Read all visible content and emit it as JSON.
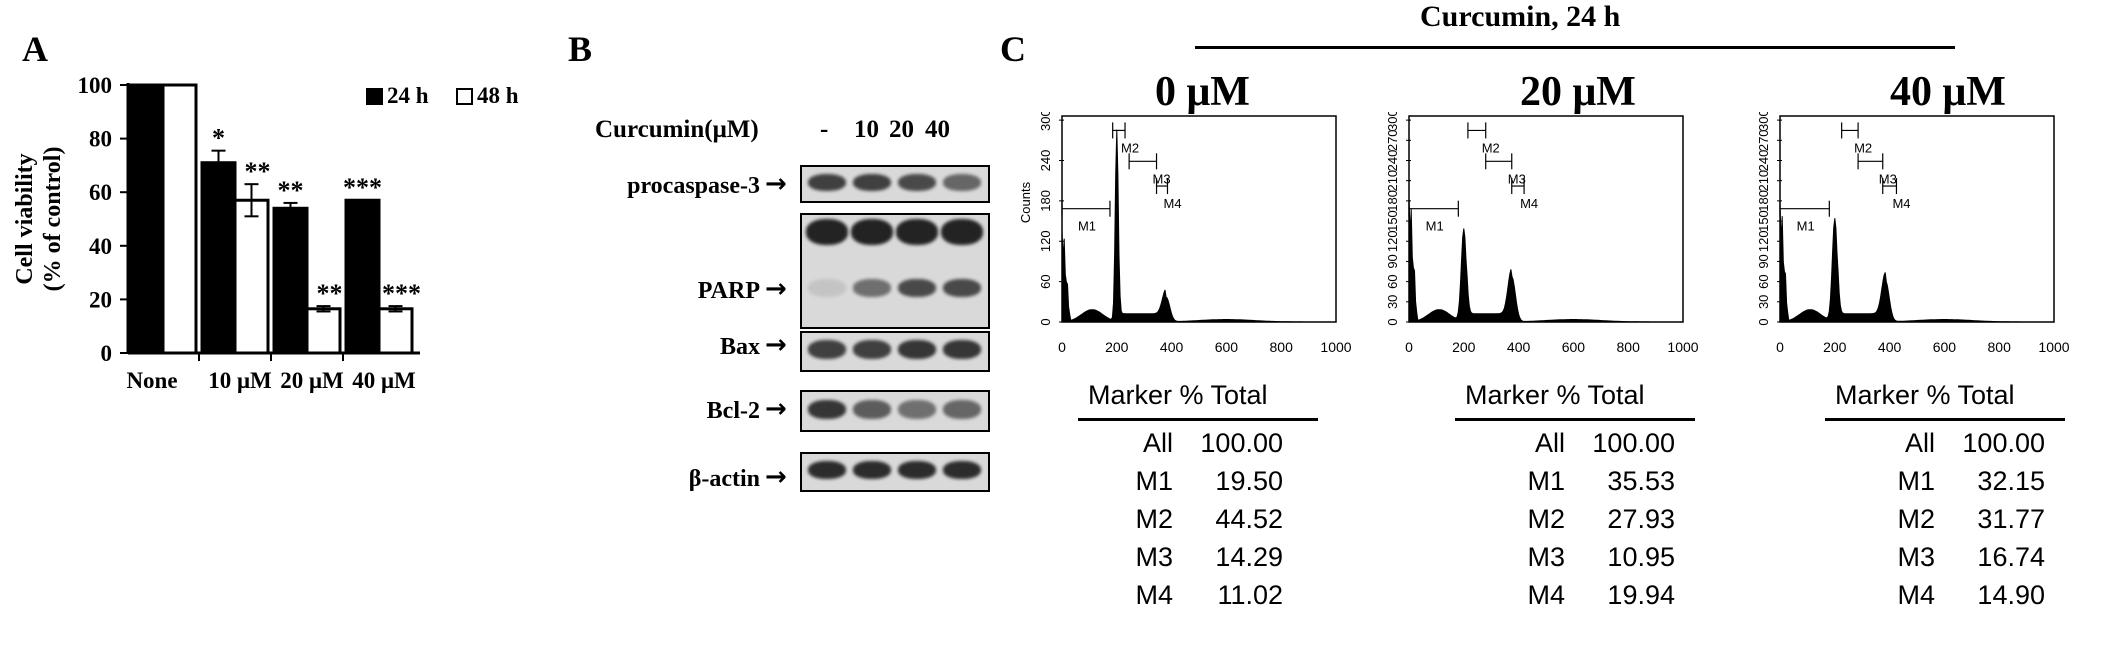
{
  "panels": {
    "A": {
      "letter": "A",
      "chart_data": {
        "type": "bar",
        "categories": [
          "None",
          "10 μM",
          "20 μM",
          "40 μM"
        ],
        "series": [
          {
            "name": "24 h",
            "values": [
              100,
              71,
              54,
              57
            ],
            "errors": [
              0,
              4.5,
              2,
              0
            ],
            "sig": [
              "",
              "*",
              "**",
              "***"
            ],
            "color": "#000000"
          },
          {
            "name": "48 h",
            "values": [
              100,
              57,
              16.5,
              16.5
            ],
            "errors": [
              0,
              6,
              1,
              1
            ],
            "sig": [
              "",
              "**",
              "**",
              "***"
            ],
            "color": "#ffffff"
          }
        ],
        "ylabel_line1": "Cell viability",
        "ylabel_line2": "(% of control)",
        "ylim": [
          0,
          100
        ],
        "yticks": [
          0,
          20,
          40,
          60,
          80,
          100
        ],
        "legend": "top-right"
      }
    },
    "B": {
      "letter": "B",
      "header_label": "Curcumin(μM)",
      "lanes": [
        "-",
        "10",
        "20",
        "40"
      ],
      "blots": [
        {
          "label": "procaspase-3",
          "intensity": [
            0.8,
            0.8,
            0.75,
            0.6
          ]
        },
        {
          "label": "PARP",
          "intensity": [
            0.1,
            0.55,
            0.75,
            0.75
          ]
        },
        {
          "label": "Bax",
          "intensity": [
            0.8,
            0.8,
            0.85,
            0.85
          ]
        },
        {
          "label": "Bcl-2",
          "intensity": [
            0.85,
            0.65,
            0.55,
            0.6
          ]
        },
        {
          "label": "β-actin",
          "intensity": [
            0.9,
            0.9,
            0.9,
            0.9
          ]
        }
      ],
      "arrow": "→"
    },
    "C": {
      "letter": "C",
      "title": "Curcumin, 24 h",
      "histograms": [
        {
          "concentration": "0 μM",
          "ylabel": "Counts",
          "yticks": [
            0,
            60,
            120,
            180,
            240,
            300
          ],
          "xticks": [
            0,
            200,
            400,
            600,
            800,
            1000
          ],
          "markers": [
            "M1",
            "M2",
            "M3",
            "M4"
          ],
          "stats_header": "Marker % Total",
          "stats": [
            {
              "marker": "All",
              "value": "100.00"
            },
            {
              "marker": "M1",
              "value": "19.50"
            },
            {
              "marker": "M2",
              "value": "44.52"
            },
            {
              "marker": "M3",
              "value": "14.29"
            },
            {
              "marker": "M4",
              "value": "11.02"
            }
          ]
        },
        {
          "concentration": "20 μM",
          "ylabel": "",
          "yticks": [
            0,
            30,
            60,
            90,
            120,
            150,
            180,
            210,
            240,
            270,
            300
          ],
          "xticks": [
            0,
            200,
            400,
            600,
            800,
            1000
          ],
          "markers": [
            "M1",
            "M2",
            "M3",
            "M4"
          ],
          "stats_header": "Marker % Total",
          "stats": [
            {
              "marker": "All",
              "value": "100.00"
            },
            {
              "marker": "M1",
              "value": "35.53"
            },
            {
              "marker": "M2",
              "value": "27.93"
            },
            {
              "marker": "M3",
              "value": "10.95"
            },
            {
              "marker": "M4",
              "value": "19.94"
            }
          ]
        },
        {
          "concentration": "40 μM",
          "ylabel": "",
          "yticks": [
            0,
            30,
            60,
            90,
            120,
            150,
            180,
            210,
            240,
            270,
            300
          ],
          "xticks": [
            0,
            200,
            400,
            600,
            800,
            1000
          ],
          "markers": [
            "M1",
            "M2",
            "M3",
            "M4"
          ],
          "stats_header": "Marker % Total",
          "stats": [
            {
              "marker": "All",
              "value": "100.00"
            },
            {
              "marker": "M1",
              "value": "32.15"
            },
            {
              "marker": "M2",
              "value": "31.77"
            },
            {
              "marker": "M3",
              "value": "16.74"
            },
            {
              "marker": "M4",
              "value": "14.90"
            }
          ]
        }
      ]
    }
  }
}
